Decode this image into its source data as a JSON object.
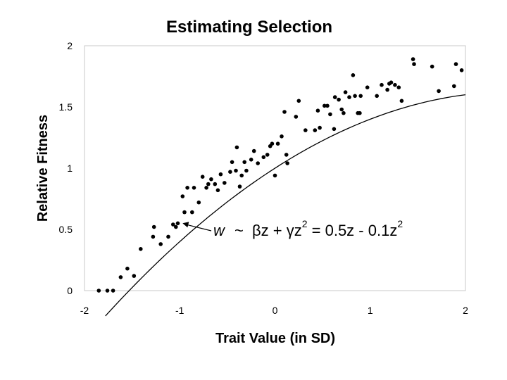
{
  "chart_data": {
    "type": "scatter",
    "title": "Estimating Selection",
    "xlabel": "Trait Value (in SD)",
    "ylabel": "Relative Fitness",
    "xlim": [
      -2,
      2
    ],
    "ylim": [
      0,
      2
    ],
    "x_ticks": [
      -2,
      -1,
      0,
      1,
      2
    ],
    "y_ticks": [
      0,
      0.5,
      1,
      1.5,
      2
    ],
    "x_tick_labels": [
      "-2",
      "-1",
      "0",
      "1",
      "2"
    ],
    "y_tick_labels": [
      "0",
      "0.5",
      "1",
      "1.5",
      "2"
    ],
    "grid": false,
    "points": [
      {
        "x": -1.85,
        "y": 0.0
      },
      {
        "x": -1.76,
        "y": 0.0
      },
      {
        "x": -1.7,
        "y": 0.0
      },
      {
        "x": -1.62,
        "y": 0.11
      },
      {
        "x": -1.55,
        "y": 0.18
      },
      {
        "x": -1.48,
        "y": 0.12
      },
      {
        "x": -1.41,
        "y": 0.34
      },
      {
        "x": -1.28,
        "y": 0.44
      },
      {
        "x": -1.27,
        "y": 0.52
      },
      {
        "x": -1.2,
        "y": 0.38
      },
      {
        "x": -1.12,
        "y": 0.44
      },
      {
        "x": -1.07,
        "y": 0.54
      },
      {
        "x": -1.04,
        "y": 0.52
      },
      {
        "x": -1.02,
        "y": 0.55
      },
      {
        "x": -0.97,
        "y": 0.77
      },
      {
        "x": -0.95,
        "y": 0.64
      },
      {
        "x": -0.92,
        "y": 0.84
      },
      {
        "x": -0.87,
        "y": 0.64
      },
      {
        "x": -0.85,
        "y": 0.84
      },
      {
        "x": -0.8,
        "y": 0.72
      },
      {
        "x": -0.76,
        "y": 0.93
      },
      {
        "x": -0.72,
        "y": 0.84
      },
      {
        "x": -0.7,
        "y": 0.87
      },
      {
        "x": -0.67,
        "y": 0.91
      },
      {
        "x": -0.63,
        "y": 0.87
      },
      {
        "x": -0.6,
        "y": 0.82
      },
      {
        "x": -0.57,
        "y": 0.95
      },
      {
        "x": -0.53,
        "y": 0.88
      },
      {
        "x": -0.47,
        "y": 0.97
      },
      {
        "x": -0.45,
        "y": 1.05
      },
      {
        "x": -0.41,
        "y": 0.98
      },
      {
        "x": -0.4,
        "y": 1.17
      },
      {
        "x": -0.37,
        "y": 0.85
      },
      {
        "x": -0.35,
        "y": 0.94
      },
      {
        "x": -0.32,
        "y": 1.05
      },
      {
        "x": -0.3,
        "y": 0.98
      },
      {
        "x": -0.25,
        "y": 1.07
      },
      {
        "x": -0.22,
        "y": 1.14
      },
      {
        "x": -0.18,
        "y": 1.04
      },
      {
        "x": -0.12,
        "y": 1.09
      },
      {
        "x": -0.08,
        "y": 1.11
      },
      {
        "x": -0.05,
        "y": 1.18
      },
      {
        "x": -0.03,
        "y": 1.2
      },
      {
        "x": 0.0,
        "y": 0.94
      },
      {
        "x": 0.03,
        "y": 1.2
      },
      {
        "x": 0.07,
        "y": 1.26
      },
      {
        "x": 0.1,
        "y": 1.46
      },
      {
        "x": 0.12,
        "y": 1.11
      },
      {
        "x": 0.13,
        "y": 1.04
      },
      {
        "x": 0.22,
        "y": 1.42
      },
      {
        "x": 0.25,
        "y": 1.55
      },
      {
        "x": 0.32,
        "y": 1.31
      },
      {
        "x": 0.42,
        "y": 1.31
      },
      {
        "x": 0.45,
        "y": 1.47
      },
      {
        "x": 0.47,
        "y": 1.33
      },
      {
        "x": 0.52,
        "y": 1.51
      },
      {
        "x": 0.55,
        "y": 1.51
      },
      {
        "x": 0.58,
        "y": 1.44
      },
      {
        "x": 0.62,
        "y": 1.32
      },
      {
        "x": 0.63,
        "y": 1.58
      },
      {
        "x": 0.67,
        "y": 1.56
      },
      {
        "x": 0.7,
        "y": 1.48
      },
      {
        "x": 0.72,
        "y": 1.45
      },
      {
        "x": 0.74,
        "y": 1.62
      },
      {
        "x": 0.78,
        "y": 1.58
      },
      {
        "x": 0.82,
        "y": 1.76
      },
      {
        "x": 0.84,
        "y": 1.59
      },
      {
        "x": 0.87,
        "y": 1.45
      },
      {
        "x": 0.89,
        "y": 1.45
      },
      {
        "x": 0.9,
        "y": 1.59
      },
      {
        "x": 0.97,
        "y": 1.66
      },
      {
        "x": 1.07,
        "y": 1.59
      },
      {
        "x": 1.12,
        "y": 1.68
      },
      {
        "x": 1.18,
        "y": 1.64
      },
      {
        "x": 1.2,
        "y": 1.69
      },
      {
        "x": 1.22,
        "y": 1.7
      },
      {
        "x": 1.26,
        "y": 1.68
      },
      {
        "x": 1.3,
        "y": 1.66
      },
      {
        "x": 1.33,
        "y": 1.55
      },
      {
        "x": 1.45,
        "y": 1.89
      },
      {
        "x": 1.46,
        "y": 1.85
      },
      {
        "x": 1.65,
        "y": 1.83
      },
      {
        "x": 1.72,
        "y": 1.63
      },
      {
        "x": 1.88,
        "y": 1.67
      },
      {
        "x": 1.9,
        "y": 1.85
      },
      {
        "x": 1.96,
        "y": 1.8
      }
    ],
    "fit_curve": {
      "equation": "w = 1 + 0.5z - 0.1z^2",
      "x_range": [
        -1.78,
        2.0
      ]
    },
    "annotation": {
      "pointer": {
        "x": -0.97,
        "y": 0.55
      },
      "text": "w ~ βz + γz2 = 0.5z - 0.1z2"
    }
  },
  "annotation_parts": {
    "w": "w",
    "tilde": "~",
    "beta": "β",
    "z1": "z + ",
    "gamma": "γ",
    "z2": "z",
    "sup1": "2",
    "rest": " = 0.5z - 0.1z",
    "sup2": "2"
  }
}
